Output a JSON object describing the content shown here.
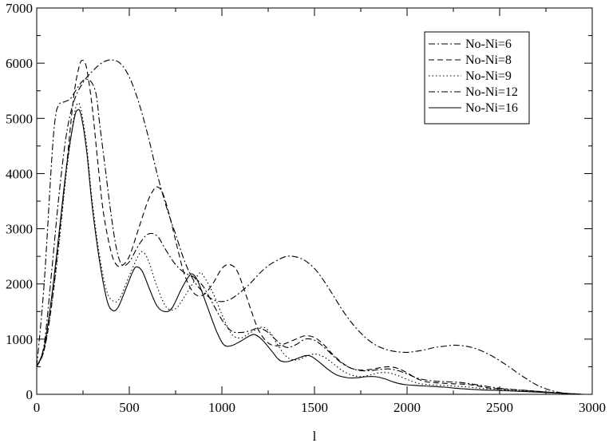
{
  "chart_data": {
    "type": "line",
    "title": "",
    "xlabel": "l",
    "ylabel": "",
    "xlim": [
      0,
      3000
    ],
    "ylim": [
      0,
      7000
    ],
    "grid": false,
    "legend_position": "top-right",
    "x_ticks": [
      0,
      500,
      1000,
      1500,
      2000,
      2500,
      3000
    ],
    "y_ticks": [
      0,
      1000,
      2000,
      3000,
      4000,
      5000,
      6000,
      7000
    ],
    "series": [
      {
        "name": "No-Ni=6",
        "dash": "dashdot",
        "points": [
          [
            0,
            500
          ],
          [
            40,
            900
          ],
          [
            80,
            2200
          ],
          [
            120,
            3600
          ],
          [
            160,
            4700
          ],
          [
            200,
            5300
          ],
          [
            250,
            5650
          ],
          [
            300,
            5850
          ],
          [
            350,
            6000
          ],
          [
            400,
            6060
          ],
          [
            450,
            6000
          ],
          [
            500,
            5750
          ],
          [
            550,
            5300
          ],
          [
            600,
            4700
          ],
          [
            650,
            4000
          ],
          [
            700,
            3400
          ],
          [
            750,
            2900
          ],
          [
            800,
            2400
          ],
          [
            850,
            2050
          ],
          [
            900,
            1850
          ],
          [
            950,
            1720
          ],
          [
            1000,
            1680
          ],
          [
            1050,
            1730
          ],
          [
            1100,
            1850
          ],
          [
            1150,
            2000
          ],
          [
            1200,
            2180
          ],
          [
            1250,
            2330
          ],
          [
            1300,
            2430
          ],
          [
            1350,
            2500
          ],
          [
            1400,
            2490
          ],
          [
            1450,
            2420
          ],
          [
            1500,
            2280
          ],
          [
            1550,
            2060
          ],
          [
            1600,
            1800
          ],
          [
            1650,
            1530
          ],
          [
            1700,
            1300
          ],
          [
            1750,
            1110
          ],
          [
            1800,
            960
          ],
          [
            1850,
            860
          ],
          [
            1900,
            800
          ],
          [
            1950,
            770
          ],
          [
            2000,
            760
          ],
          [
            2050,
            780
          ],
          [
            2100,
            810
          ],
          [
            2150,
            850
          ],
          [
            2200,
            870
          ],
          [
            2250,
            890
          ],
          [
            2300,
            880
          ],
          [
            2350,
            850
          ],
          [
            2400,
            790
          ],
          [
            2450,
            710
          ],
          [
            2500,
            610
          ],
          [
            2550,
            500
          ],
          [
            2600,
            380
          ],
          [
            2650,
            270
          ],
          [
            2700,
            170
          ],
          [
            2750,
            100
          ],
          [
            2800,
            50
          ],
          [
            2850,
            20
          ],
          [
            2900,
            5
          ],
          [
            2950,
            0
          ]
        ]
      },
      {
        "name": "No-Ni=8",
        "dash": "dashed",
        "points": [
          [
            0,
            500
          ],
          [
            40,
            800
          ],
          [
            80,
            1600
          ],
          [
            120,
            2800
          ],
          [
            160,
            4100
          ],
          [
            200,
            5400
          ],
          [
            230,
            5950
          ],
          [
            250,
            6050
          ],
          [
            270,
            5900
          ],
          [
            300,
            5200
          ],
          [
            330,
            4200
          ],
          [
            360,
            3300
          ],
          [
            400,
            2600
          ],
          [
            430,
            2350
          ],
          [
            460,
            2330
          ],
          [
            500,
            2500
          ],
          [
            550,
            3000
          ],
          [
            600,
            3500
          ],
          [
            630,
            3700
          ],
          [
            650,
            3760
          ],
          [
            680,
            3650
          ],
          [
            720,
            3200
          ],
          [
            760,
            2650
          ],
          [
            800,
            2150
          ],
          [
            850,
            1830
          ],
          [
            900,
            1800
          ],
          [
            950,
            2000
          ],
          [
            1000,
            2280
          ],
          [
            1040,
            2350
          ],
          [
            1080,
            2250
          ],
          [
            1120,
            1900
          ],
          [
            1160,
            1500
          ],
          [
            1200,
            1150
          ],
          [
            1250,
            930
          ],
          [
            1300,
            880
          ],
          [
            1350,
            930
          ],
          [
            1400,
            1000
          ],
          [
            1450,
            1060
          ],
          [
            1500,
            1030
          ],
          [
            1550,
            900
          ],
          [
            1600,
            720
          ],
          [
            1650,
            570
          ],
          [
            1700,
            470
          ],
          [
            1750,
            440
          ],
          [
            1800,
            450
          ],
          [
            1850,
            480
          ],
          [
            1900,
            500
          ],
          [
            1950,
            470
          ],
          [
            2000,
            390
          ],
          [
            2050,
            290
          ],
          [
            2100,
            230
          ],
          [
            2150,
            210
          ],
          [
            2200,
            200
          ],
          [
            2250,
            190
          ],
          [
            2300,
            185
          ],
          [
            2350,
            170
          ],
          [
            2400,
            140
          ],
          [
            2450,
            110
          ],
          [
            2500,
            100
          ],
          [
            2550,
            90
          ],
          [
            2600,
            80
          ],
          [
            2650,
            70
          ],
          [
            2700,
            55
          ],
          [
            2800,
            30
          ],
          [
            2900,
            10
          ],
          [
            2950,
            0
          ]
        ]
      },
      {
        "name": "No-Ni=9",
        "dash": "dotted",
        "points": [
          [
            0,
            500
          ],
          [
            40,
            800
          ],
          [
            80,
            1600
          ],
          [
            120,
            2700
          ],
          [
            160,
            4000
          ],
          [
            200,
            5000
          ],
          [
            220,
            5270
          ],
          [
            240,
            5150
          ],
          [
            270,
            4500
          ],
          [
            300,
            3500
          ],
          [
            340,
            2500
          ],
          [
            380,
            1850
          ],
          [
            420,
            1680
          ],
          [
            450,
            1750
          ],
          [
            500,
            2150
          ],
          [
            550,
            2520
          ],
          [
            570,
            2580
          ],
          [
            600,
            2450
          ],
          [
            650,
            1950
          ],
          [
            700,
            1580
          ],
          [
            750,
            1550
          ],
          [
            800,
            1780
          ],
          [
            850,
            2050
          ],
          [
            880,
            2200
          ],
          [
            900,
            2150
          ],
          [
            950,
            1850
          ],
          [
            1000,
            1450
          ],
          [
            1050,
            1100
          ],
          [
            1100,
            1020
          ],
          [
            1150,
            1110
          ],
          [
            1200,
            1200
          ],
          [
            1230,
            1210
          ],
          [
            1270,
            1080
          ],
          [
            1300,
            900
          ],
          [
            1350,
            680
          ],
          [
            1400,
            620
          ],
          [
            1450,
            680
          ],
          [
            1500,
            730
          ],
          [
            1550,
            680
          ],
          [
            1600,
            560
          ],
          [
            1650,
            430
          ],
          [
            1700,
            350
          ],
          [
            1750,
            320
          ],
          [
            1800,
            350
          ],
          [
            1850,
            390
          ],
          [
            1900,
            390
          ],
          [
            1950,
            340
          ],
          [
            2000,
            270
          ],
          [
            2050,
            210
          ],
          [
            2100,
            180
          ],
          [
            2200,
            160
          ],
          [
            2300,
            140
          ],
          [
            2400,
            110
          ],
          [
            2500,
            90
          ],
          [
            2600,
            70
          ],
          [
            2700,
            50
          ],
          [
            2800,
            25
          ],
          [
            2900,
            8
          ],
          [
            2950,
            0
          ]
        ]
      },
      {
        "name": "No-Ni=12",
        "dash": "dashdot",
        "points": [
          [
            0,
            500
          ],
          [
            40,
            2000
          ],
          [
            80,
            4200
          ],
          [
            100,
            5000
          ],
          [
            120,
            5250
          ],
          [
            150,
            5300
          ],
          [
            180,
            5350
          ],
          [
            210,
            5500
          ],
          [
            240,
            5650
          ],
          [
            260,
            5700
          ],
          [
            290,
            5680
          ],
          [
            320,
            5450
          ],
          [
            340,
            4900
          ],
          [
            370,
            4100
          ],
          [
            400,
            3300
          ],
          [
            430,
            2650
          ],
          [
            460,
            2350
          ],
          [
            500,
            2400
          ],
          [
            550,
            2700
          ],
          [
            600,
            2900
          ],
          [
            650,
            2870
          ],
          [
            700,
            2600
          ],
          [
            750,
            2350
          ],
          [
            800,
            2200
          ],
          [
            850,
            2120
          ],
          [
            900,
            1950
          ],
          [
            950,
            1650
          ],
          [
            1000,
            1350
          ],
          [
            1050,
            1150
          ],
          [
            1100,
            1120
          ],
          [
            1150,
            1150
          ],
          [
            1200,
            1200
          ],
          [
            1250,
            1120
          ],
          [
            1300,
            960
          ],
          [
            1350,
            850
          ],
          [
            1400,
            900
          ],
          [
            1450,
            1000
          ],
          [
            1500,
            980
          ],
          [
            1550,
            860
          ],
          [
            1600,
            700
          ],
          [
            1650,
            560
          ],
          [
            1700,
            470
          ],
          [
            1750,
            430
          ],
          [
            1800,
            430
          ],
          [
            1850,
            450
          ],
          [
            1900,
            460
          ],
          [
            1950,
            430
          ],
          [
            2000,
            370
          ],
          [
            2050,
            300
          ],
          [
            2100,
            260
          ],
          [
            2150,
            240
          ],
          [
            2200,
            230
          ],
          [
            2300,
            210
          ],
          [
            2400,
            160
          ],
          [
            2500,
            110
          ],
          [
            2600,
            80
          ],
          [
            2700,
            55
          ],
          [
            2800,
            30
          ],
          [
            2900,
            10
          ],
          [
            2950,
            0
          ]
        ]
      },
      {
        "name": "No-Ni=16",
        "dash": "solid",
        "points": [
          [
            0,
            500
          ],
          [
            40,
            850
          ],
          [
            80,
            1750
          ],
          [
            120,
            2900
          ],
          [
            160,
            4100
          ],
          [
            200,
            4950
          ],
          [
            220,
            5150
          ],
          [
            240,
            5050
          ],
          [
            270,
            4400
          ],
          [
            300,
            3400
          ],
          [
            340,
            2400
          ],
          [
            380,
            1700
          ],
          [
            410,
            1520
          ],
          [
            440,
            1580
          ],
          [
            480,
            1900
          ],
          [
            520,
            2230
          ],
          [
            540,
            2310
          ],
          [
            570,
            2230
          ],
          [
            610,
            1900
          ],
          [
            650,
            1600
          ],
          [
            690,
            1500
          ],
          [
            730,
            1560
          ],
          [
            780,
            1900
          ],
          [
            820,
            2130
          ],
          [
            840,
            2180
          ],
          [
            870,
            2050
          ],
          [
            920,
            1600
          ],
          [
            970,
            1150
          ],
          [
            1010,
            900
          ],
          [
            1050,
            880
          ],
          [
            1100,
            960
          ],
          [
            1150,
            1060
          ],
          [
            1180,
            1080
          ],
          [
            1220,
            980
          ],
          [
            1270,
            780
          ],
          [
            1310,
            620
          ],
          [
            1350,
            590
          ],
          [
            1400,
            640
          ],
          [
            1450,
            700
          ],
          [
            1480,
            690
          ],
          [
            1520,
            600
          ],
          [
            1570,
            460
          ],
          [
            1620,
            350
          ],
          [
            1680,
            300
          ],
          [
            1730,
            300
          ],
          [
            1780,
            320
          ],
          [
            1830,
            320
          ],
          [
            1880,
            280
          ],
          [
            1930,
            220
          ],
          [
            1980,
            180
          ],
          [
            2050,
            160
          ],
          [
            2100,
            150
          ],
          [
            2200,
            130
          ],
          [
            2300,
            100
          ],
          [
            2400,
            80
          ],
          [
            2500,
            70
          ],
          [
            2600,
            55
          ],
          [
            2700,
            40
          ],
          [
            2800,
            25
          ],
          [
            2900,
            8
          ],
          [
            2950,
            0
          ]
        ]
      }
    ]
  }
}
